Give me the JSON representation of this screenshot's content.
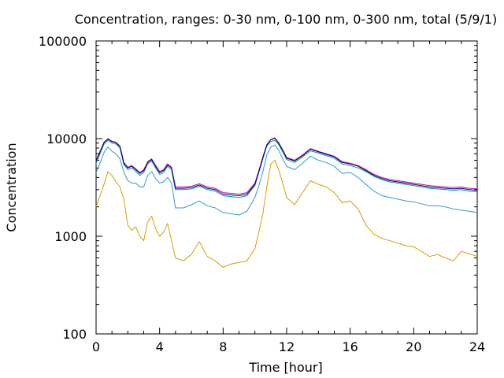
{
  "chart_data": {
    "type": "line",
    "title": "Concentration, ranges: 0-30 nm, 0-100 nm, 0-300 nm, total (5/9/1)",
    "xlabel": "Time [hour]",
    "ylabel": "Concentration",
    "xlim": [
      0,
      24
    ],
    "ylim": [
      100,
      100000
    ],
    "yscale": "log",
    "grid": false,
    "legend": "none",
    "xticks": [
      0,
      4,
      8,
      12,
      16,
      20,
      24
    ],
    "yticks": [
      100,
      1000,
      10000,
      100000
    ],
    "xtick_labels": [
      "0",
      "4",
      "8",
      "12",
      "16",
      "20",
      "24"
    ],
    "ytick_labels": [
      "100",
      "1000",
      "10000",
      "100000"
    ],
    "x": [
      0,
      0.25,
      0.5,
      0.75,
      1,
      1.25,
      1.5,
      1.75,
      2,
      2.25,
      2.5,
      2.75,
      3,
      3.25,
      3.5,
      3.75,
      4,
      4.25,
      4.5,
      4.75,
      5,
      5.5,
      6,
      6.5,
      7,
      7.5,
      8,
      8.5,
      9,
      9.5,
      10,
      10.25,
      10.5,
      10.75,
      11,
      11.25,
      11.5,
      11.75,
      12,
      12.5,
      13,
      13.5,
      14,
      14.5,
      15,
      15.5,
      16,
      16.5,
      17,
      17.5,
      18,
      18.5,
      19,
      19.5,
      20,
      20.5,
      21,
      21.5,
      22,
      22.5,
      23,
      23.5,
      24
    ],
    "series": [
      {
        "color": "#d4a000",
        "values": [
          2000,
          2600,
          3400,
          4600,
          4200,
          3600,
          3200,
          2400,
          1300,
          1150,
          1250,
          1000,
          900,
          1400,
          1600,
          1200,
          1000,
          1100,
          1350,
          900,
          600,
          560,
          650,
          880,
          620,
          560,
          480,
          520,
          540,
          560,
          750,
          1100,
          1700,
          3200,
          5500,
          6000,
          4800,
          3500,
          2500,
          2100,
          2800,
          3700,
          3400,
          3200,
          2800,
          2200,
          2300,
          1900,
          1300,
          1050,
          950,
          900,
          850,
          800,
          780,
          700,
          620,
          650,
          600,
          560,
          700,
          660,
          620
        ]
      },
      {
        "color": "#3399cc",
        "values": [
          4500,
          5600,
          7200,
          8200,
          7400,
          7000,
          6200,
          4500,
          3700,
          3500,
          3500,
          3200,
          3200,
          4200,
          4600,
          3900,
          3500,
          3600,
          4000,
          3500,
          1950,
          1950,
          2100,
          2300,
          2050,
          1950,
          1750,
          1700,
          1650,
          1800,
          2500,
          3300,
          4600,
          6800,
          8200,
          8600,
          7600,
          6200,
          5200,
          4800,
          5600,
          6600,
          6000,
          5700,
          5200,
          4400,
          4500,
          4000,
          3400,
          2900,
          2600,
          2500,
          2400,
          2300,
          2250,
          2150,
          2050,
          2050,
          2000,
          1900,
          1850,
          1800,
          1750
        ]
      },
      {
        "color": "#009e73",
        "values": [
          5600,
          7000,
          8800,
          9600,
          9000,
          8800,
          8000,
          5400,
          4800,
          5000,
          4600,
          4200,
          4500,
          5500,
          5900,
          5000,
          4300,
          4500,
          5200,
          4800,
          3000,
          3000,
          3050,
          3250,
          3000,
          2900,
          2600,
          2550,
          2500,
          2600,
          3300,
          4500,
          6200,
          8400,
          9300,
          9600,
          8700,
          7300,
          6100,
          5700,
          6500,
          7500,
          7100,
          6700,
          6300,
          5500,
          5300,
          5000,
          4600,
          4100,
          3800,
          3600,
          3500,
          3400,
          3300,
          3200,
          3100,
          3050,
          3000,
          2950,
          3000,
          2900,
          2850
        ]
      },
      {
        "color": "#cc00cc",
        "values": [
          6000,
          7400,
          9200,
          10000,
          9400,
          9200,
          8400,
          5700,
          5100,
          5300,
          4900,
          4500,
          4800,
          5800,
          6200,
          5300,
          4600,
          4800,
          5500,
          5100,
          3200,
          3200,
          3250,
          3450,
          3200,
          3100,
          2800,
          2750,
          2700,
          2800,
          3500,
          4700,
          6500,
          8700,
          9800,
          10200,
          9100,
          7700,
          6400,
          6000,
          6800,
          7900,
          7400,
          7000,
          6600,
          5800,
          5600,
          5300,
          4800,
          4300,
          4000,
          3800,
          3700,
          3600,
          3500,
          3400,
          3300,
          3250,
          3200,
          3150,
          3200,
          3100,
          3050
        ]
      },
      {
        "color": "#000080",
        "values": [
          5900,
          7300,
          9100,
          9900,
          9300,
          9100,
          8300,
          5600,
          5000,
          5200,
          4800,
          4400,
          4700,
          5700,
          6100,
          5200,
          4500,
          4700,
          5400,
          5000,
          3100,
          3100,
          3150,
          3350,
          3100,
          3000,
          2700,
          2650,
          2600,
          2700,
          3400,
          4600,
          6400,
          8600,
          9700,
          10100,
          9000,
          7600,
          6300,
          5900,
          6700,
          7800,
          7300,
          6900,
          6500,
          5700,
          5500,
          5200,
          4700,
          4200,
          3900,
          3700,
          3600,
          3500,
          3400,
          3300,
          3200,
          3150,
          3100,
          3050,
          3100,
          3000,
          2950
        ]
      }
    ]
  }
}
